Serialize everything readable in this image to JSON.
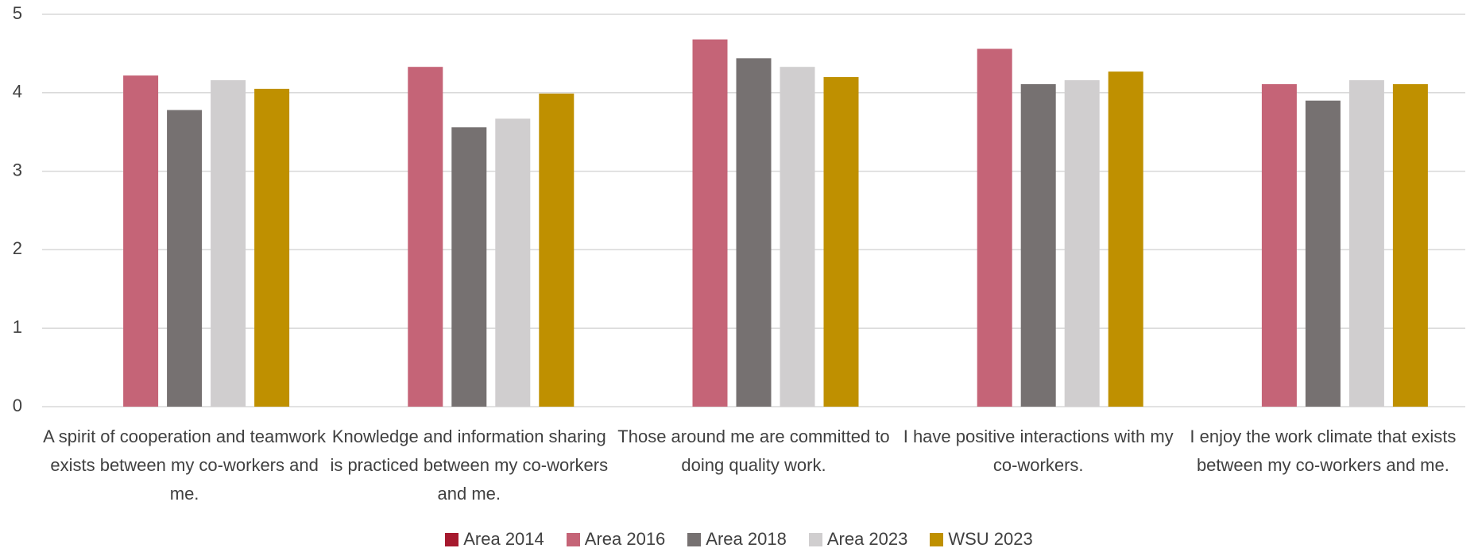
{
  "chart_data": {
    "type": "bar",
    "categories": [
      "A spirit of cooperation and teamwork exists between my co-workers and me.",
      "Knowledge and information sharing is practiced between my co-workers and me.",
      "Those around me are committed to doing quality work.",
      "I have positive interactions with my co-workers.",
      "I enjoy the work climate that exists between my co-workers and me."
    ],
    "series": [
      {
        "name": "Area 2014",
        "color": "#a6192e",
        "values": [
          null,
          null,
          null,
          null,
          null
        ]
      },
      {
        "name": "Area 2016",
        "color": "#c56477",
        "values": [
          4.22,
          4.33,
          4.68,
          4.56,
          4.11
        ]
      },
      {
        "name": "Area 2018",
        "color": "#767171",
        "values": [
          3.78,
          3.56,
          4.44,
          4.11,
          3.9
        ]
      },
      {
        "name": "Area 2023",
        "color": "#d0cecf",
        "values": [
          4.16,
          3.67,
          4.33,
          4.16,
          4.16
        ]
      },
      {
        "name": "WSU 2023",
        "color": "#bf9000",
        "values": [
          4.05,
          3.99,
          4.2,
          4.27,
          4.11
        ]
      }
    ],
    "ylim": [
      0,
      5
    ],
    "yticks": [
      0,
      1,
      2,
      3,
      4,
      5
    ],
    "grid": true,
    "legend": "bottom"
  }
}
